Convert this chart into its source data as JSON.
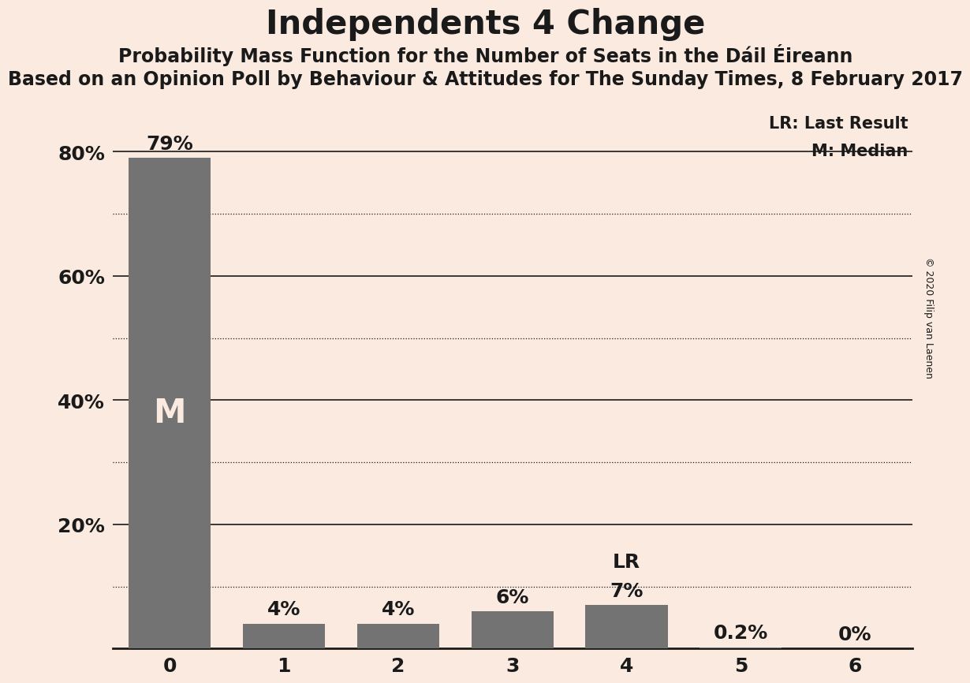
{
  "title": "Independents 4 Change",
  "subtitle": "Probability Mass Function for the Number of Seats in the Dáil Éireann",
  "sub_subtitle": "Based on an Opinion Poll by Behaviour & Attitudes for The Sunday Times, 8 February 2017",
  "copyright": "© 2020 Filip van Laenen",
  "categories": [
    0,
    1,
    2,
    3,
    4,
    5,
    6
  ],
  "values": [
    0.79,
    0.04,
    0.04,
    0.06,
    0.07,
    0.002,
    0.0
  ],
  "bar_color": "#737373",
  "background_color": "#faeae0",
  "bar_labels": [
    "79%",
    "4%",
    "4%",
    "6%",
    "7%",
    "0.2%",
    "0%"
  ],
  "median_bar": 0,
  "lr_bar": 4,
  "median_label": "M",
  "lr_label": "LR",
  "legend_lr": "LR: Last Result",
  "legend_m": "M: Median",
  "ylim": [
    0,
    0.88
  ],
  "yticks": [
    0.0,
    0.2,
    0.4,
    0.6,
    0.8
  ],
  "ytick_labels": [
    "",
    "20%",
    "40%",
    "60%",
    "80%"
  ],
  "solid_grid": [
    0.2,
    0.4,
    0.6,
    0.8
  ],
  "dotted_grid": [
    0.1,
    0.3,
    0.5,
    0.7
  ],
  "title_fontsize": 30,
  "subtitle_fontsize": 17,
  "sub_subtitle_fontsize": 17,
  "axis_tick_fontsize": 18,
  "bar_label_fontsize": 18,
  "bar_label_color_dark": "#1a1a1a",
  "bar_label_color_light": "#faeae0",
  "text_color": "#1a1a1a",
  "m_fontsize": 30
}
